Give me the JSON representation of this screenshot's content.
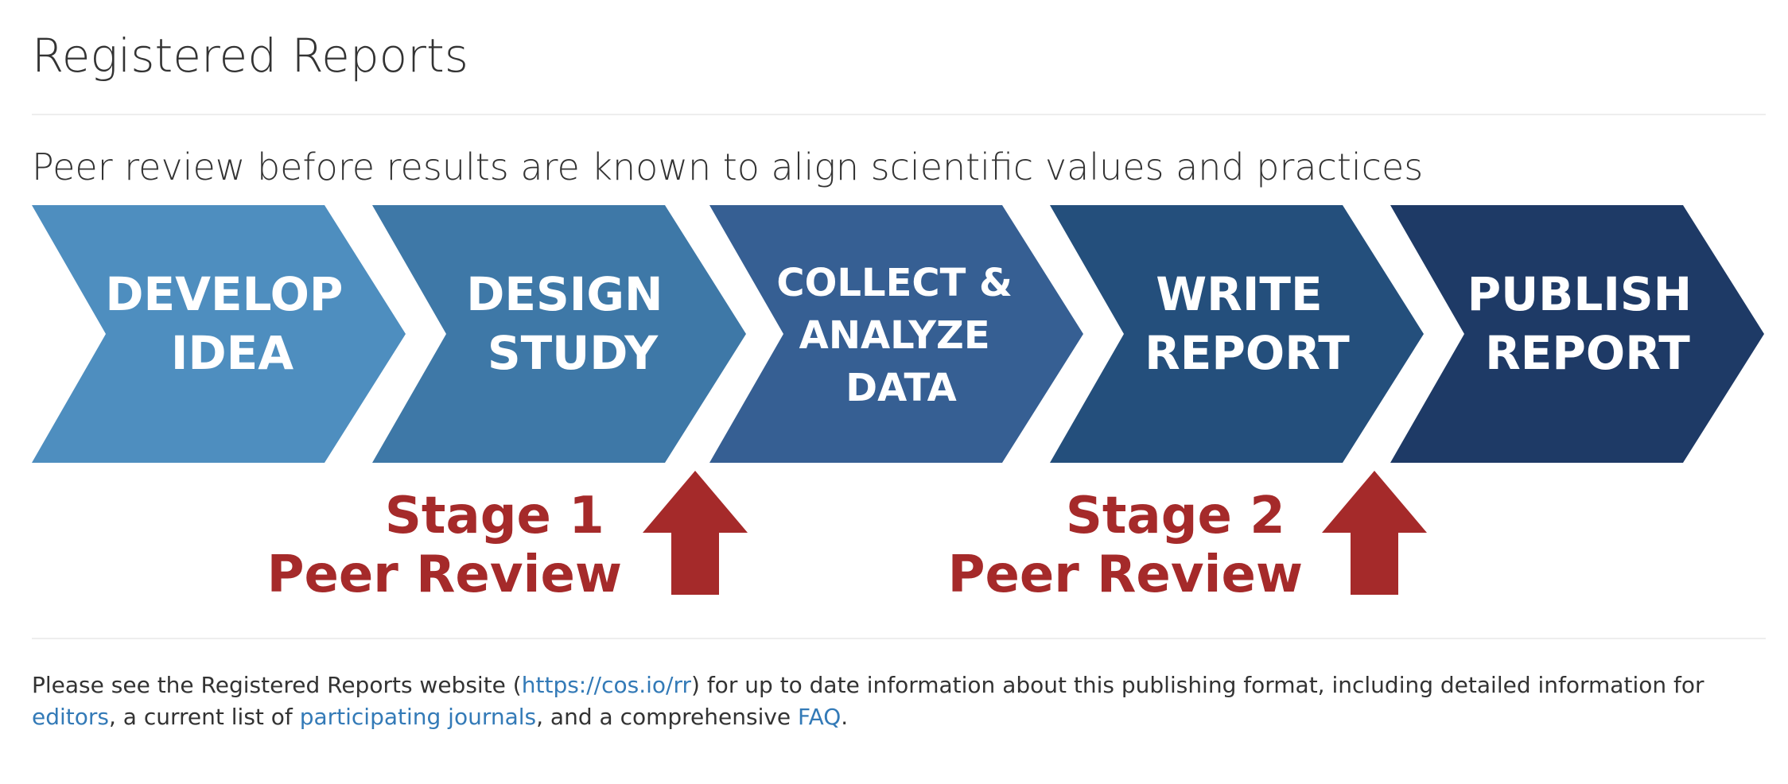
{
  "header": {
    "title": "Registered Reports",
    "subtitle": "Peer review before results are known to align scientific values and practices"
  },
  "process": {
    "steps": [
      {
        "lines": [
          "DEVELOP",
          "IDEA"
        ],
        "color": "#4e8ebf"
      },
      {
        "lines": [
          "DESIGN",
          "STUDY"
        ],
        "color": "#3e78a7"
      },
      {
        "lines": [
          "COLLECT &",
          "ANALYZE",
          "DATA"
        ],
        "color": "#365f93"
      },
      {
        "lines": [
          "WRITE",
          "REPORT"
        ],
        "color": "#244f7c"
      },
      {
        "lines": [
          "PUBLISH",
          "REPORT"
        ],
        "color": "#1e3a66"
      }
    ],
    "review_stages": [
      {
        "stage": "Stage 1",
        "label": "Peer Review"
      },
      {
        "stage": "Stage 2",
        "label": "Peer Review"
      }
    ],
    "review_color": "#a52a2a",
    "text_color": "#ffffff"
  },
  "footer": {
    "text_1": "Please see the Registered Reports website (",
    "link_website": "https://cos.io/rr",
    "text_2": ") for up to date information about this publishing format, including detailed information for ",
    "link_editors": "editors",
    "text_3": ", a current list of ",
    "link_journals": "participating journals",
    "text_4": ", and a comprehensive ",
    "link_faq": "FAQ",
    "text_5": ".",
    "link_color": "#337ab7"
  }
}
